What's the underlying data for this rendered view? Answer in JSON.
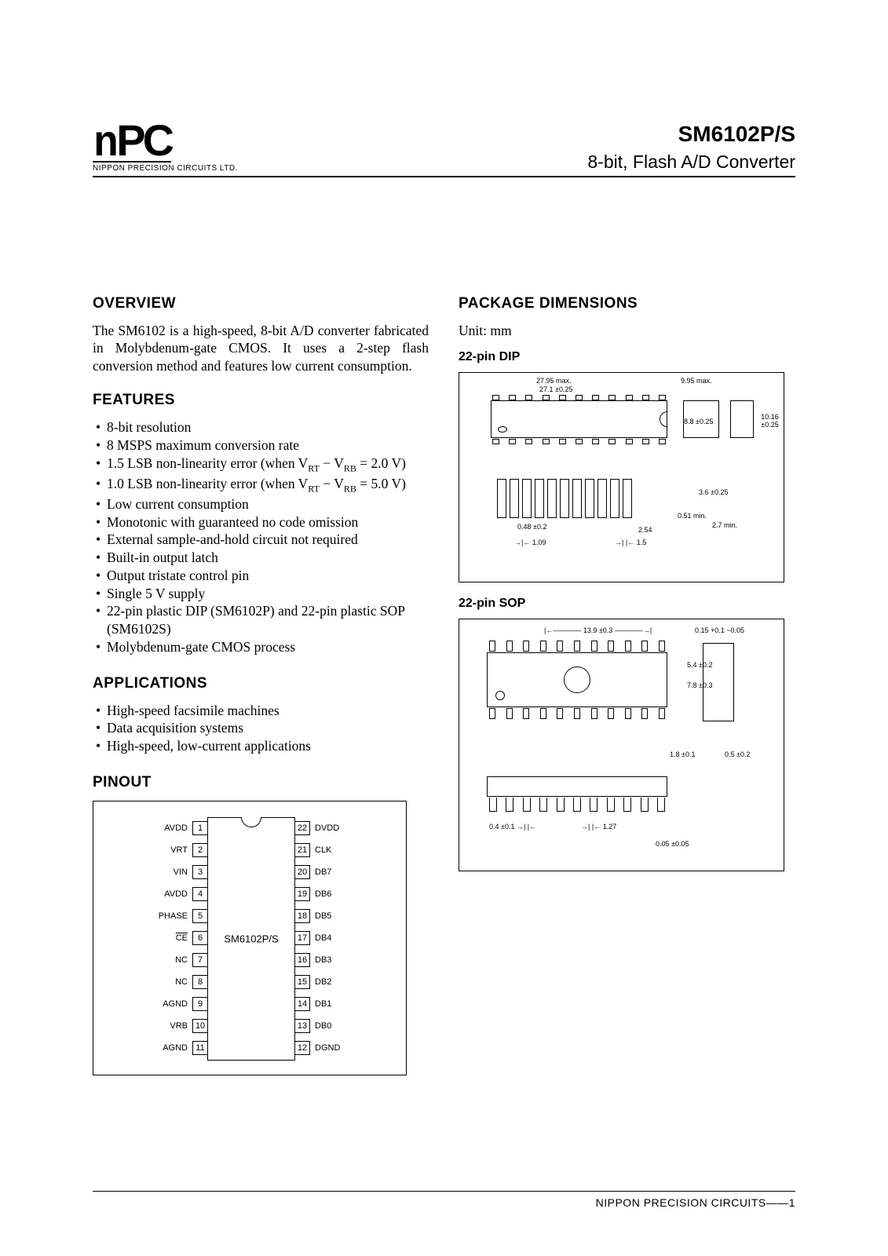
{
  "header": {
    "logo_text": "NPC",
    "logo_sub": "NIPPON PRECISION CIRCUITS LTD.",
    "part_no": "SM6102P/S",
    "part_desc": "8-bit, Flash A/D Converter"
  },
  "overview": {
    "heading": "OVERVIEW",
    "text": "The SM6102 is a high-speed, 8-bit A/D converter fabricated in Molybdenum-gate CMOS. It uses a 2-step flash conversion method and features low current consumption."
  },
  "features": {
    "heading": "FEATURES",
    "items": [
      {
        "text": "8-bit resolution"
      },
      {
        "text": "8 MSPS maximum conversion rate"
      },
      {
        "pre": "1.5 LSB non-linearity error (when V",
        "sub1": "RT",
        "mid": " − V",
        "sub2": "RB",
        "post": " = 2.0 V)"
      },
      {
        "pre": "1.0 LSB non-linearity error (when V",
        "sub1": "RT",
        "mid": " − V",
        "sub2": "RB",
        "post": " = 5.0 V)"
      },
      {
        "text": "Low current consumption"
      },
      {
        "text": "Monotonic with guaranteed no code omission"
      },
      {
        "text": "External sample-and-hold circuit not required"
      },
      {
        "text": "Built-in output latch"
      },
      {
        "text": "Output tristate control pin"
      },
      {
        "text": "Single 5 V supply"
      },
      {
        "text": "22-pin plastic DIP (SM6102P) and 22-pin plastic SOP (SM6102S)"
      },
      {
        "text": "Molybdenum-gate CMOS process"
      }
    ]
  },
  "applications": {
    "heading": "APPLICATIONS",
    "items": [
      "High-speed facsimile machines",
      "Data acquisition systems",
      "High-speed, low-current applications"
    ]
  },
  "pinout": {
    "heading": "PINOUT",
    "chip_label": "SM6102P/S",
    "left": [
      {
        "n": "1",
        "l": "AVDD"
      },
      {
        "n": "2",
        "l": "VRT"
      },
      {
        "n": "3",
        "l": "VIN"
      },
      {
        "n": "4",
        "l": "AVDD"
      },
      {
        "n": "5",
        "l": "PHASE"
      },
      {
        "n": "6",
        "l": "CE",
        "ov": true
      },
      {
        "n": "7",
        "l": "NC"
      },
      {
        "n": "8",
        "l": "NC"
      },
      {
        "n": "9",
        "l": "AGND"
      },
      {
        "n": "10",
        "l": "VRB"
      },
      {
        "n": "11",
        "l": "AGND"
      }
    ],
    "right": [
      {
        "n": "22",
        "l": "DVDD"
      },
      {
        "n": "21",
        "l": "CLK"
      },
      {
        "n": "20",
        "l": "DB7"
      },
      {
        "n": "19",
        "l": "DB6"
      },
      {
        "n": "18",
        "l": "DB5"
      },
      {
        "n": "17",
        "l": "DB4"
      },
      {
        "n": "16",
        "l": "DB3"
      },
      {
        "n": "15",
        "l": "DB2"
      },
      {
        "n": "14",
        "l": "DB1"
      },
      {
        "n": "13",
        "l": "DB0"
      },
      {
        "n": "12",
        "l": "DGND"
      }
    ]
  },
  "package": {
    "heading": "PACKAGE DIMENSIONS",
    "unit": "Unit: mm",
    "dip_heading": "22-pin DIP",
    "sop_heading": "22-pin SOP",
    "dip_dims": {
      "len_max": "27.95 max.",
      "len": "27.1 ±0.25",
      "width_max": "9.95 max.",
      "width": "8.8 ±0.25",
      "row_pitch": "10.16 ±0.25",
      "body_h": "3.6 ±0.25",
      "seating": "0.51 min.",
      "standoff": "2.7 min.",
      "pitch": "2.54",
      "lead_w": "0.48 ±0.2",
      "shoulder": "1.09",
      "toe": "1.5"
    },
    "sop_dims": {
      "len": "13.9 ±0.3",
      "lead_t": "0.15 +0.1 −0.05",
      "width": "7.8 ±0.3",
      "body_w": "5.4 ±0.2",
      "thickness": "1.8 ±0.1",
      "standoff": "0.5 ±0.2",
      "lead_w": "0.4 ±0.1",
      "pitch": "1.27",
      "coplanarity": "0.05 ±0.05"
    }
  },
  "footer": "NIPPON PRECISION CIRCUITS——1"
}
